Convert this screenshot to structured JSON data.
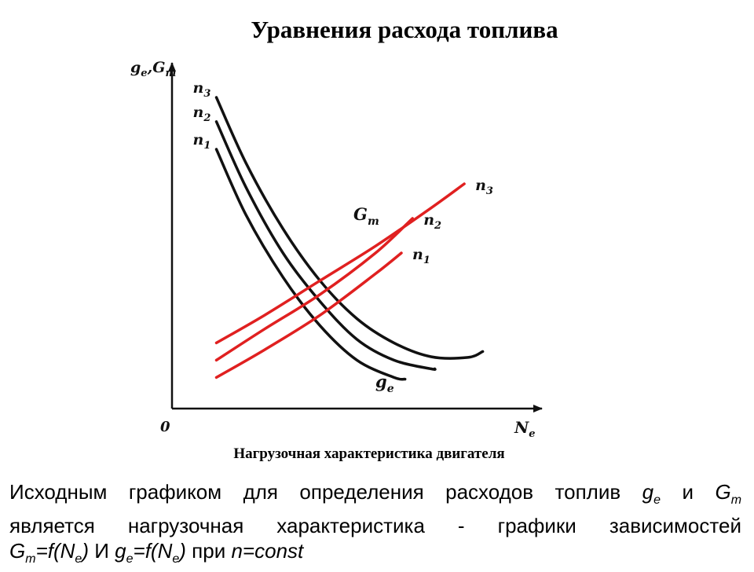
{
  "title": "Уравнения расхода топлива",
  "caption": "Нагрузочная характеристика двигателя",
  "description": {
    "line1_text": "Исходным графиком для определения расходов топлив",
    "line1_sym1": "g",
    "line1_sym1_sub": "e",
    "line1_conj": "и",
    "line1_sym2": "G",
    "line1_sym2_sub": "m",
    "line2": "является нагрузочная характеристика - графики зависимостей",
    "line3_f1_a": "G",
    "line3_f1_sub": "m",
    "line3_f1_b": "=f(N",
    "line3_f1_sub2": "e",
    "line3_f1_c": ")",
    "line3_conj": "И",
    "line3_f2_a": "g",
    "line3_f2_sub": "e",
    "line3_f2_b": "=f(N",
    "line3_f2_sub2": "e",
    "line3_f2_c": ")",
    "line3_pri": "при",
    "line3_cond": "n=const"
  },
  "chart_data": {
    "type": "line",
    "title": "",
    "xlabel": "N",
    "xlabel_sub": "e",
    "ylabel": "g",
    "ylabel_sub": "e",
    "ylabel_sep": ",",
    "ylabel2": "G",
    "ylabel2_sub": "т",
    "origin_label": "0",
    "xlim": [
      0,
      100
    ],
    "ylim": [
      0,
      100
    ],
    "grid": false,
    "group_labels": {
      "ge": {
        "main": "g",
        "sub": "e"
      },
      "Gt": {
        "main": "G",
        "sub": "т"
      }
    },
    "series": [
      {
        "name": "n",
        "sub": "1",
        "group": "ge",
        "color": "#111111",
        "x": [
          12,
          20,
          30,
          40,
          50,
          60,
          63
        ],
        "y": [
          75,
          56,
          38,
          24,
          14,
          9,
          8.5
        ]
      },
      {
        "name": "n",
        "sub": "2",
        "group": "ge",
        "color": "#111111",
        "x": [
          12,
          20,
          30,
          40,
          50,
          60,
          70,
          71
        ],
        "y": [
          83,
          64,
          45,
          31,
          20,
          14,
          11.5,
          11.5
        ]
      },
      {
        "name": "n",
        "sub": "3",
        "group": "ge",
        "color": "#111111",
        "x": [
          12,
          20,
          30,
          40,
          50,
          60,
          70,
          80,
          84
        ],
        "y": [
          90,
          71,
          52,
          37,
          26,
          19,
          15,
          14.8,
          16.5
        ]
      },
      {
        "name": "n",
        "sub": "1",
        "group": "Gt",
        "color": "#e02020",
        "x": [
          12,
          25,
          40,
          55,
          62
        ],
        "y": [
          9,
          17,
          27,
          39,
          45
        ]
      },
      {
        "name": "n",
        "sub": "2",
        "group": "Gt",
        "color": "#e02020",
        "x": [
          12,
          25,
          40,
          55,
          65
        ],
        "y": [
          14,
          23,
          33,
          45,
          55
        ]
      },
      {
        "name": "n",
        "sub": "3",
        "group": "Gt",
        "color": "#e02020",
        "x": [
          12,
          25,
          40,
          55,
          70,
          79
        ],
        "y": [
          19,
          27,
          37,
          47,
          58,
          65
        ]
      }
    ]
  }
}
